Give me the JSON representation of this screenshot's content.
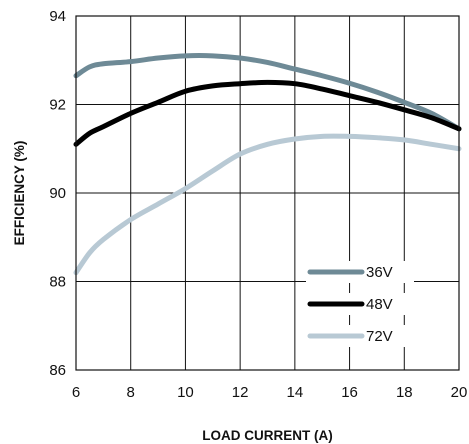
{
  "chart_data": {
    "type": "line",
    "title": "",
    "xlabel": "LOAD CURRENT (A)",
    "ylabel": "EFFICIENCY (%)",
    "xlim": [
      6,
      20
    ],
    "ylim": [
      86,
      94
    ],
    "x_ticks": [
      6,
      8,
      10,
      12,
      14,
      16,
      18,
      20
    ],
    "y_ticks": [
      86,
      88,
      90,
      92,
      94
    ],
    "grid": true,
    "legend_position": "bottom-right",
    "series": [
      {
        "name": "36V",
        "color": "#6e8a96",
        "x": [
          6,
          6.5,
          7,
          8,
          9,
          10,
          11,
          12,
          13,
          14,
          15,
          16,
          17,
          18,
          19,
          20
        ],
        "y": [
          92.65,
          92.85,
          92.92,
          92.97,
          93.05,
          93.1,
          93.1,
          93.05,
          92.95,
          92.8,
          92.65,
          92.48,
          92.28,
          92.05,
          91.8,
          91.45
        ]
      },
      {
        "name": "48V",
        "color": "#000000",
        "x": [
          6,
          6.5,
          7,
          8,
          9,
          10,
          11,
          12,
          13,
          14,
          15,
          16,
          17,
          18,
          19,
          20
        ],
        "y": [
          91.1,
          91.35,
          91.5,
          91.8,
          92.05,
          92.3,
          92.42,
          92.47,
          92.5,
          92.47,
          92.35,
          92.2,
          92.05,
          91.88,
          91.7,
          91.45
        ]
      },
      {
        "name": "72V",
        "color": "#b8c9d4",
        "x": [
          6,
          6.5,
          7,
          8,
          9,
          10,
          11,
          12,
          13,
          14,
          15,
          16,
          17,
          18,
          19,
          20
        ],
        "y": [
          88.2,
          88.65,
          88.95,
          89.4,
          89.75,
          90.1,
          90.5,
          90.88,
          91.1,
          91.22,
          91.28,
          91.28,
          91.25,
          91.2,
          91.1,
          91.0
        ]
      }
    ]
  }
}
